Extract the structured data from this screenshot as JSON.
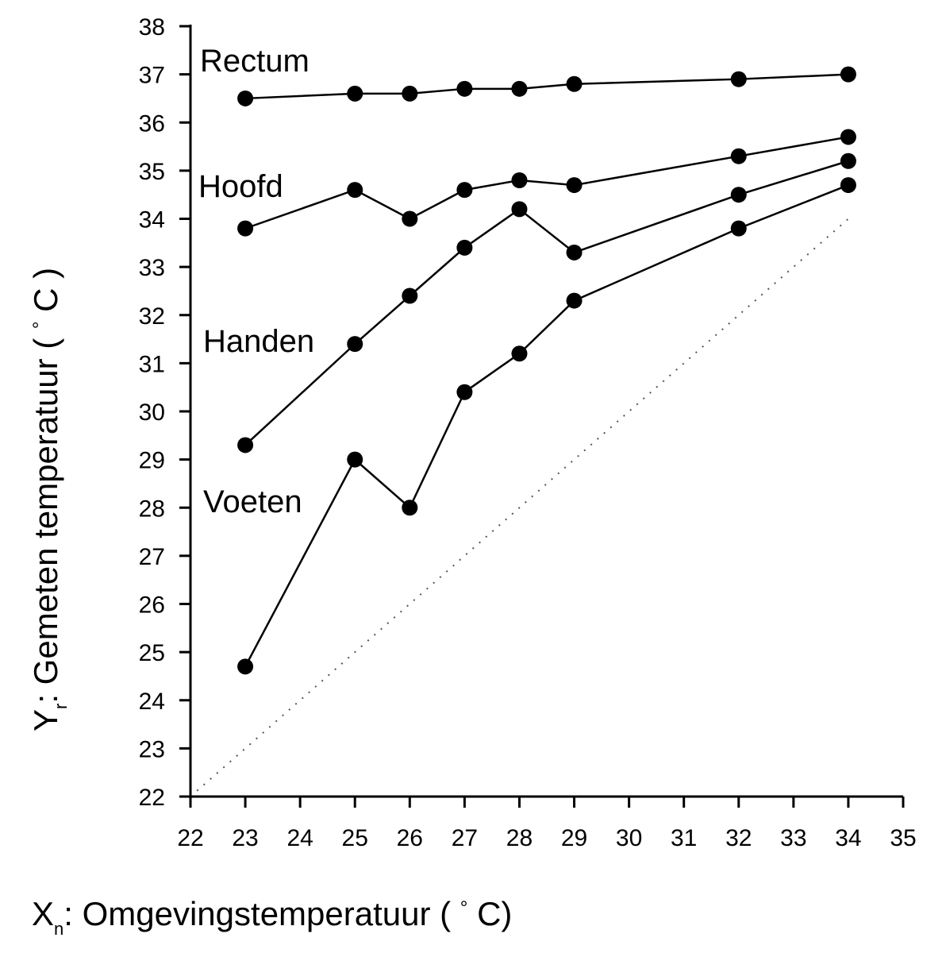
{
  "chart_data": {
    "type": "line",
    "title": "",
    "xlabel": {
      "main": "X",
      "subscript": "n",
      "text": ": Omgevingstemperatuur ( ",
      "superscript": "°",
      "unit": " C)"
    },
    "ylabel": {
      "main": "Y",
      "subscript": "r",
      "text": ": Gemeten temperatuur ( ",
      "superscript": "°",
      "unit": " C )"
    },
    "xlim": [
      22,
      35
    ],
    "ylim": [
      22,
      38
    ],
    "xticks": [
      "22",
      "23",
      "24",
      "25",
      "26",
      "27",
      "28",
      "29",
      "30",
      "31",
      "32",
      "33",
      "34",
      "35"
    ],
    "yticks": [
      "22",
      "23",
      "24",
      "25",
      "26",
      "27",
      "28",
      "29",
      "30",
      "31",
      "32",
      "33",
      "34",
      "35",
      "36",
      "37",
      "38"
    ],
    "x": [
      23,
      25,
      26,
      27,
      28,
      29,
      32,
      34
    ],
    "series": [
      {
        "name": "Rectum",
        "values": [
          36.5,
          36.6,
          36.6,
          36.7,
          36.7,
          36.8,
          36.9,
          37.0
        ]
      },
      {
        "name": "Hoofd",
        "values": [
          33.8,
          34.6,
          34.0,
          34.6,
          34.8,
          34.7,
          35.3,
          35.7
        ]
      },
      {
        "name": "Handen",
        "values": [
          29.3,
          31.4,
          32.4,
          33.4,
          34.2,
          33.3,
          34.5,
          35.2
        ]
      },
      {
        "name": "Voeten",
        "values": [
          24.7,
          29.0,
          28.0,
          30.4,
          31.2,
          32.3,
          33.8,
          34.7
        ]
      }
    ],
    "reference_line": {
      "style": "dotted",
      "from": [
        22,
        22
      ],
      "to": [
        34,
        34
      ]
    }
  }
}
